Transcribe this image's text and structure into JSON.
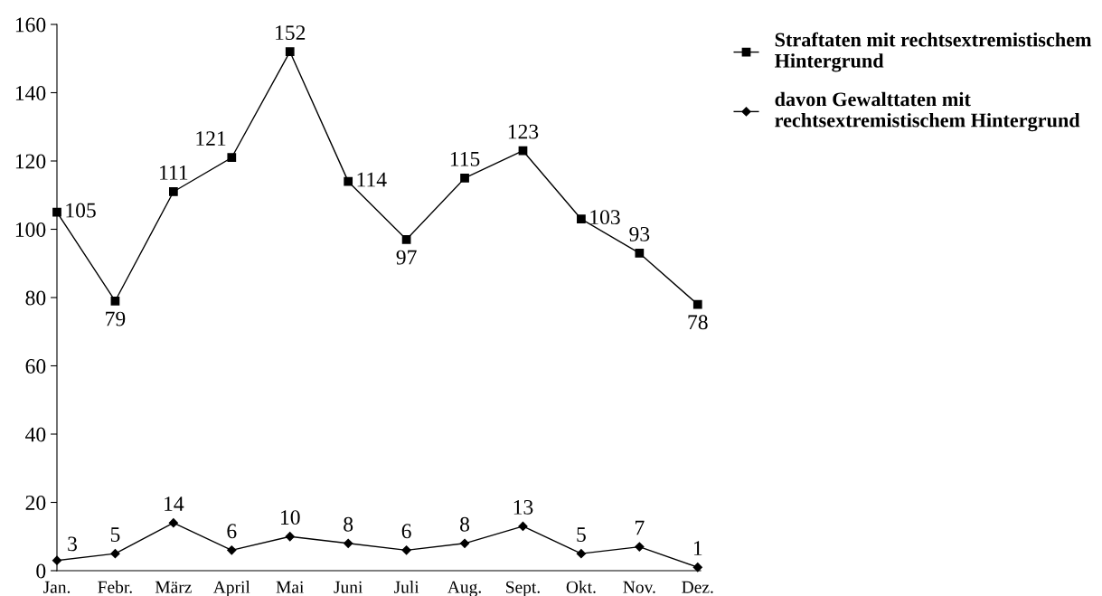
{
  "chart_data": {
    "type": "line",
    "categories": [
      "Jan.",
      "Febr.",
      "März",
      "April",
      "Mai",
      "Juni",
      "Juli",
      "Aug.",
      "Sept.",
      "Okt.",
      "Nov.",
      "Dez."
    ],
    "series": [
      {
        "name": "Straftaten mit rechtsextremistischem\nHintergrund",
        "color": "#000000",
        "marker": "square",
        "values": [
          105,
          79,
          111,
          121,
          152,
          114,
          97,
          115,
          123,
          103,
          93,
          78
        ]
      },
      {
        "name": "davon Gewalttaten mit\nrechtsextremistischem Hintergrund",
        "color": "#000000",
        "marker": "diamond",
        "values": [
          3,
          5,
          14,
          6,
          10,
          8,
          6,
          8,
          13,
          5,
          7,
          1
        ]
      }
    ],
    "ylim": [
      0,
      160
    ],
    "yticks": [
      0,
      20,
      40,
      60,
      80,
      100,
      120,
      140,
      160
    ],
    "data_labels": true,
    "legend": "top right",
    "grid": false,
    "line_style": "solid"
  }
}
